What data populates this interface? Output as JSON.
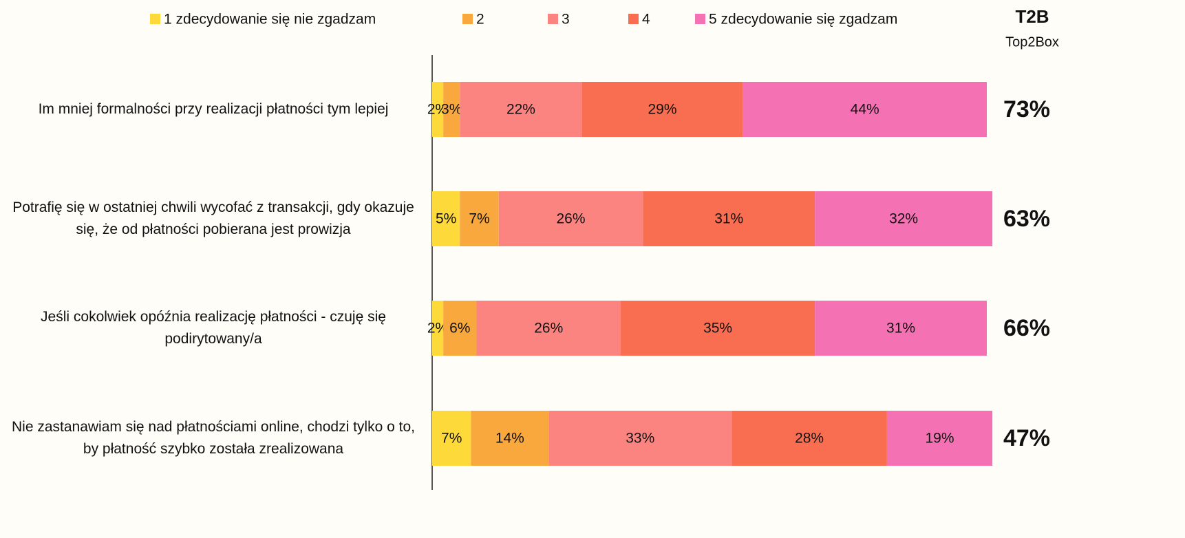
{
  "chart_data": {
    "type": "stacked-bar-horizontal",
    "categories": [
      "Im mniej formalności przy realizacji płatności tym lepiej",
      "Potrafię się w ostatniej chwili wycofać z transakcji, gdy okazuje się, że od płatności pobierana jest prowizja",
      "Jeśli cokolwiek opóźnia realizację płatności - czuję się podirytowany/a",
      "Nie zastanawiam się nad płatnościami online, chodzi tylko o to, by płatność szybko została zrealizowana"
    ],
    "series": [
      {
        "name": "1 zdecydowanie się nie zgadzam",
        "color": "#fdd93a",
        "values": [
          2,
          5,
          2,
          7
        ],
        "value_labels": [
          "2%",
          "5%",
          "2%",
          "7%"
        ]
      },
      {
        "name": "2",
        "color": "#f9a83e",
        "values": [
          3,
          7,
          6,
          14
        ],
        "value_labels": [
          "3%",
          "7%",
          "6%",
          "14%"
        ]
      },
      {
        "name": "3",
        "color": "#fb8480",
        "values": [
          22,
          26,
          26,
          33
        ],
        "value_labels": [
          "22%",
          "26%",
          "26%",
          "33%"
        ]
      },
      {
        "name": "4",
        "color": "#f96e50",
        "values": [
          29,
          31,
          35,
          28
        ],
        "value_labels": [
          "29%",
          "31%",
          "35%",
          "28%"
        ]
      },
      {
        "name": "5 zdecydowanie się zgadzam",
        "color": "#f472b4",
        "values": [
          44,
          32,
          31,
          19
        ],
        "value_labels": [
          "44%",
          "32%",
          "31%",
          "19%"
        ]
      }
    ],
    "xlim": [
      0,
      100
    ],
    "top2box": {
      "title": "T2B",
      "subtitle": "Top2Box",
      "color": "#2e9bf0",
      "values": [
        73,
        63,
        66,
        47
      ],
      "value_labels": [
        "73%",
        "63%",
        "66%",
        "47%"
      ]
    }
  }
}
